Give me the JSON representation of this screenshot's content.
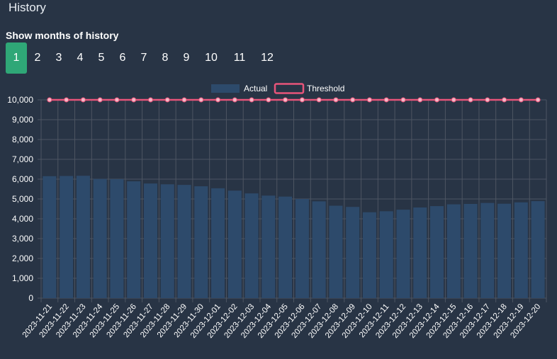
{
  "header": {
    "title": "History"
  },
  "months": {
    "label": "Show months of history",
    "options": [
      "1",
      "2",
      "3",
      "4",
      "5",
      "6",
      "7",
      "8",
      "9",
      "10",
      "11",
      "12"
    ],
    "selected": "1"
  },
  "colors": {
    "background": "#283445",
    "bar_fill": "#2d4a6b",
    "threshold_line": "#e8547a",
    "active_tab": "#2fa777",
    "grid": "#4d5562"
  },
  "chart_data": {
    "type": "bar",
    "categories": [
      "2023-11-21",
      "2023-11-22",
      "2023-11-23",
      "2023-11-24",
      "2023-11-25",
      "2023-11-26",
      "2023-11-27",
      "2023-11-28",
      "2023-11-29",
      "2023-11-30",
      "2023-12-01",
      "2023-12-02",
      "2023-12-03",
      "2023-12-04",
      "2023-12-05",
      "2023-12-06",
      "2023-12-07",
      "2023-12-08",
      "2023-12-09",
      "2023-12-10",
      "2023-12-11",
      "2023-12-12",
      "2023-12-13",
      "2023-12-14",
      "2023-12-15",
      "2023-12-16",
      "2023-12-17",
      "2023-12-18",
      "2023-12-19",
      "2023-12-20"
    ],
    "series": [
      {
        "name": "Actual",
        "type": "bar",
        "values": [
          6150,
          6160,
          6170,
          6010,
          6000,
          5890,
          5780,
          5740,
          5710,
          5640,
          5540,
          5420,
          5280,
          5170,
          5120,
          5000,
          4880,
          4660,
          4600,
          4330,
          4380,
          4460,
          4570,
          4640,
          4730,
          4750,
          4800,
          4760,
          4830,
          4890
        ]
      },
      {
        "name": "Threshold",
        "type": "line",
        "values": [
          10000,
          10000,
          10000,
          10000,
          10000,
          10000,
          10000,
          10000,
          10000,
          10000,
          10000,
          10000,
          10000,
          10000,
          10000,
          10000,
          10000,
          10000,
          10000,
          10000,
          10000,
          10000,
          10000,
          10000,
          10000,
          10000,
          10000,
          10000,
          10000,
          10000
        ]
      }
    ],
    "yticks": [
      "0",
      "1,000",
      "2,000",
      "3,000",
      "4,000",
      "5,000",
      "6,000",
      "7,000",
      "8,000",
      "9,000",
      "10,000"
    ],
    "ylim": [
      0,
      10000
    ],
    "legend": [
      "Actual",
      "Threshold"
    ],
    "legend_position": "top-center",
    "grid": true
  }
}
